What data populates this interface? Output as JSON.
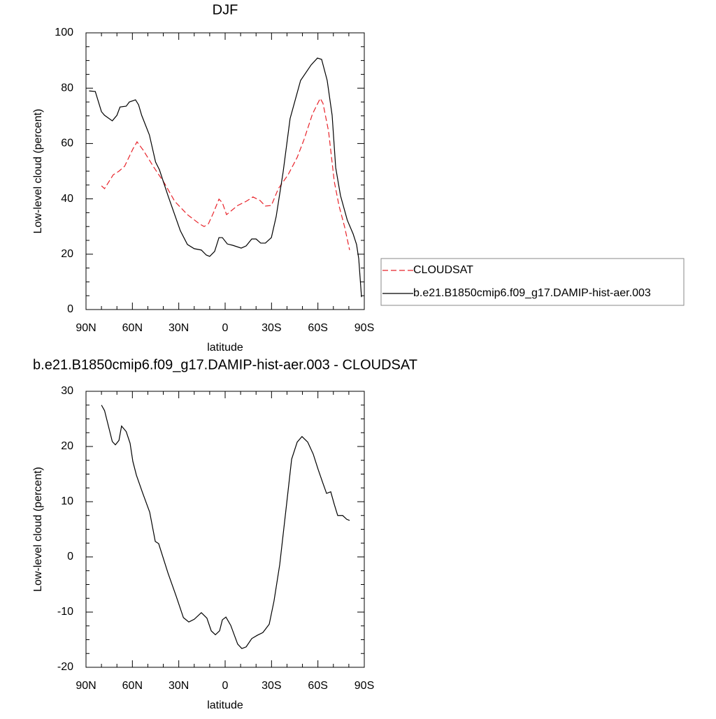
{
  "chart_data": [
    {
      "type": "line",
      "title": "DJF",
      "xlabel": "latitude",
      "ylabel": "Low-level cloud (percent)",
      "xlim": [
        90,
        -90
      ],
      "xticks": [
        {
          "value": 90,
          "label": "90N"
        },
        {
          "value": 60,
          "label": "60N"
        },
        {
          "value": 30,
          "label": "30N"
        },
        0,
        {
          "value": -30,
          "label": "30S"
        },
        {
          "value": -60,
          "label": "60S"
        },
        {
          "value": -90,
          "label": "90S"
        }
      ],
      "ylim": [
        0,
        100
      ],
      "yticks": [
        0,
        20,
        40,
        60,
        80,
        100
      ],
      "legend": "right",
      "series": [
        {
          "name": "CLOUDSAT",
          "color": "#e8232a",
          "linestyle": "dashed",
          "x": [
            80,
            78,
            72.4,
            68.7,
            65,
            59.7,
            57,
            53,
            46,
            39.3,
            32.6,
            24.4,
            16.7,
            13.6,
            10.8,
            7.7,
            4,
            1.8,
            -0.9,
            -8.1,
            -13.6,
            -18,
            -22.6,
            -26,
            -29.9,
            -34.4,
            -40.7,
            -46.6,
            -51,
            -56.5,
            -61.5,
            -63.3,
            -66.9,
            -70.6,
            -73.7,
            -77.3,
            -80.5
          ],
          "values": [
            44.7,
            43.7,
            48.7,
            50,
            51.8,
            58,
            60.6,
            57.6,
            51.3,
            45.7,
            39.1,
            34.3,
            31,
            30,
            31,
            34.8,
            39.9,
            38.6,
            34.3,
            37.6,
            39.1,
            40.7,
            39.4,
            37.4,
            37.6,
            43.7,
            48.7,
            55,
            61.4,
            70.7,
            76.3,
            74.5,
            64.4,
            46.2,
            37.4,
            29.8,
            21.5
          ]
        },
        {
          "name": "b.e21.B1850cmip6.f09_g17.DAMIP-hist-aer.003",
          "color": "#000000",
          "linestyle": "solid",
          "x": [
            88,
            84,
            80,
            78,
            73,
            70,
            68,
            64,
            62,
            58,
            56,
            54,
            49,
            45,
            42.5,
            37,
            29,
            24.4,
            20,
            15.4,
            12.2,
            10,
            6.8,
            4,
            1.8,
            -1.4,
            -5,
            -10.4,
            -13.6,
            -17.2,
            -20,
            -23,
            -26,
            -29.9,
            -33,
            -37.5,
            -42,
            -48.8,
            -55.6,
            -59.7,
            -62.4,
            -66,
            -69.2,
            -71.5,
            -74.6,
            -79,
            -82.8,
            -85,
            -86.4,
            -88.2
          ],
          "values": [
            79,
            78.8,
            71.5,
            70.2,
            68.2,
            70.2,
            73.2,
            73.5,
            75,
            75.8,
            74,
            70.2,
            63.1,
            53.3,
            50.5,
            41.2,
            28.5,
            23.5,
            22,
            21.5,
            19.7,
            19.2,
            21,
            26,
            26,
            23.7,
            23.2,
            22.2,
            23,
            25.5,
            25.5,
            24,
            24,
            26,
            33.6,
            49.7,
            69,
            82.8,
            88.4,
            90.9,
            90.4,
            82.8,
            70.2,
            51.3,
            41.2,
            32.3,
            27.3,
            23.5,
            18.4,
            4.5
          ]
        }
      ]
    },
    {
      "type": "line",
      "title": "b.e21.B1850cmip6.f09_g17.DAMIP-hist-aer.003 - CLOUDSAT",
      "xlabel": "latitude",
      "ylabel": "Low-level cloud (percent)",
      "xlim": [
        90,
        -90
      ],
      "xticks": [
        {
          "value": 90,
          "label": "90N"
        },
        {
          "value": 60,
          "label": "60N"
        },
        {
          "value": 30,
          "label": "30N"
        },
        0,
        {
          "value": -30,
          "label": "30S"
        },
        {
          "value": -60,
          "label": "60S"
        },
        {
          "value": -90,
          "label": "90S"
        }
      ],
      "ylim": [
        -20,
        30
      ],
      "yticks": [
        -20,
        -10,
        0,
        10,
        20,
        30
      ],
      "series": [
        {
          "color": "#000000",
          "linestyle": "solid",
          "x": [
            80,
            78,
            73,
            71,
            68.7,
            67,
            64,
            61.5,
            59.7,
            57.4,
            53.4,
            48.8,
            45.2,
            43,
            37,
            31.7,
            27,
            23.5,
            20,
            15.4,
            11.8,
            9,
            6.3,
            3.6,
            1.8,
            -0.5,
            -3.6,
            -8.1,
            -10.8,
            -13.6,
            -17.2,
            -20.8,
            -24.4,
            -28.5,
            -31.6,
            -35.3,
            -39.8,
            -43,
            -46.6,
            -49.7,
            -53.4,
            -57,
            -60.2,
            -63.3,
            -65.6,
            -68.3,
            -70.6,
            -72.8,
            -76,
            -78.7,
            -80.5
          ],
          "values": [
            27.5,
            26.5,
            20.9,
            20.3,
            21.1,
            23.7,
            22.7,
            20.6,
            17.3,
            14.8,
            11.6,
            8.1,
            2.8,
            2.4,
            -2.9,
            -7.1,
            -11,
            -11.8,
            -11.3,
            -10.1,
            -11.1,
            -13.4,
            -14.1,
            -13.4,
            -11.4,
            -10.9,
            -12.4,
            -15.8,
            -16.6,
            -16.3,
            -14.8,
            -14.2,
            -13.7,
            -12.2,
            -8,
            -1.4,
            9.7,
            17.7,
            20.8,
            21.8,
            20.8,
            18.6,
            15.8,
            13.3,
            11.5,
            11.8,
            9.5,
            7.5,
            7.5,
            6.8,
            6.6
          ]
        }
      ]
    }
  ]
}
